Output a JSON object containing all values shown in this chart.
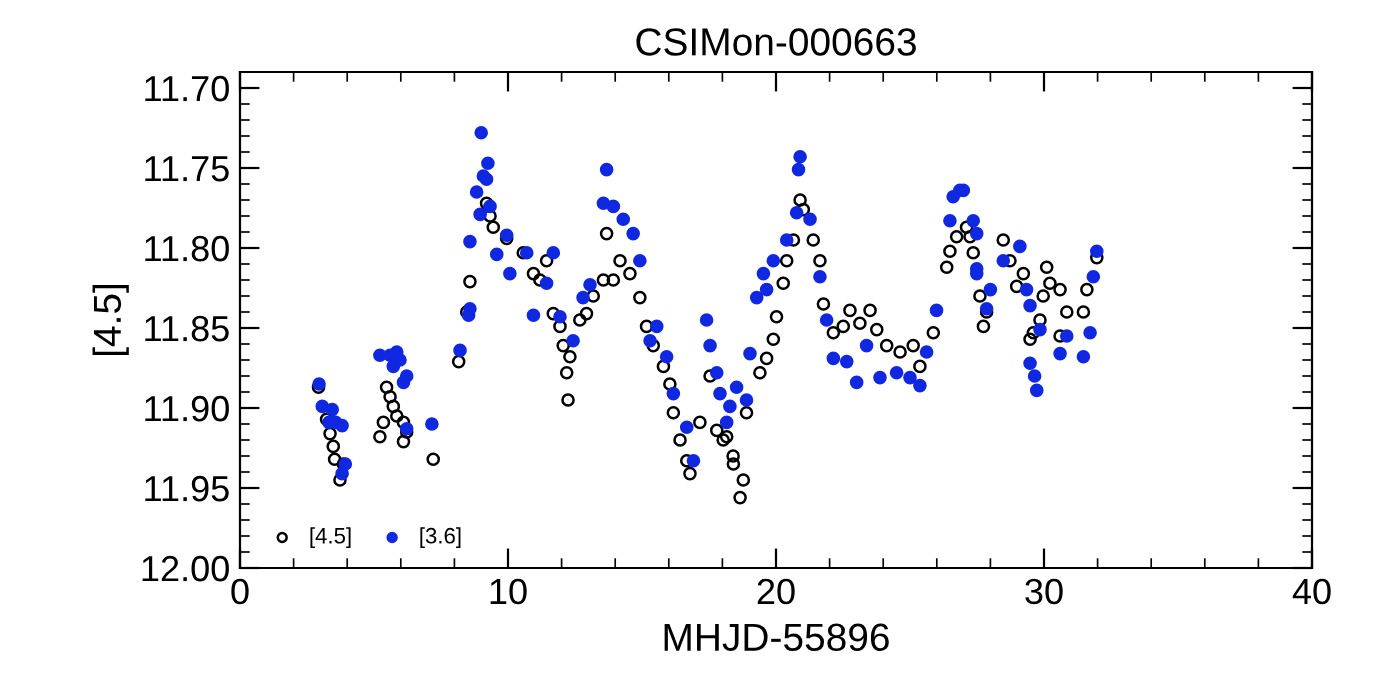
{
  "chart_data": {
    "type": "scatter",
    "title": "CSIMon-000663",
    "xlabel": "MHJD-55896",
    "ylabel": "[4.5]",
    "xlim": [
      0,
      40
    ],
    "xticks": [
      0,
      10,
      20,
      30,
      40
    ],
    "ylim": [
      12.0,
      11.69
    ],
    "yticks": [
      {
        "value": 11.7,
        "label": "11.70"
      },
      {
        "value": 11.75,
        "label": "11.75"
      },
      {
        "value": 11.8,
        "label": "11.80"
      },
      {
        "value": 11.85,
        "label": "11.85"
      },
      {
        "value": 11.9,
        "label": "11.90"
      },
      {
        "value": 11.95,
        "label": "11.95"
      },
      {
        "value": 12.0,
        "label": "12.00"
      }
    ],
    "grid": false,
    "legend": "bottom left",
    "marker": "circle",
    "series": [
      {
        "name": "[4.5]",
        "color": "#000000",
        "x": [
          2.93,
          3.23,
          3.36,
          3.48,
          3.53,
          3.86,
          3.73,
          5.47,
          5.6,
          5.72,
          5.85,
          5.35,
          5.22,
          6.1,
          6.22,
          6.1,
          7.21,
          8.16,
          8.46,
          8.58,
          9.2,
          9.33,
          9.45,
          9.95,
          10.57,
          10.95,
          11.19,
          11.44,
          11.69,
          11.94,
          12.06,
          12.31,
          12.19,
          12.24,
          12.68,
          12.93,
          13.18,
          13.56,
          13.93,
          14.18,
          13.68,
          14.55,
          14.92,
          15.17,
          15.42,
          15.8,
          16.04,
          16.17,
          16.42,
          16.67,
          16.79,
          17.16,
          17.54,
          17.79,
          18.03,
          18.4,
          18.16,
          18.41,
          18.78,
          18.66,
          18.9,
          19.4,
          19.65,
          19.9,
          20.02,
          20.27,
          20.4,
          20.65,
          20.9,
          21.02,
          21.39,
          21.64,
          21.77,
          22.14,
          22.51,
          22.76,
          23.13,
          23.51,
          23.76,
          24.13,
          24.63,
          25.12,
          25.37,
          25.87,
          26.37,
          26.49,
          26.74,
          27.11,
          27.24,
          27.36,
          27.61,
          27.86,
          27.74,
          28.48,
          28.73,
          29.23,
          28.98,
          30.1,
          30.22,
          30.6,
          29.97,
          30.85,
          29.6,
          29.48,
          29.85,
          30.6,
          31.47,
          31.6,
          31.97
        ],
        "values": [
          11.887,
          11.907,
          11.916,
          11.924,
          11.932,
          11.935,
          11.945,
          11.887,
          11.893,
          11.899,
          11.905,
          11.909,
          11.918,
          11.909,
          11.915,
          11.921,
          11.932,
          11.871,
          11.84,
          11.821,
          11.772,
          11.78,
          11.787,
          11.794,
          11.803,
          11.816,
          11.82,
          11.808,
          11.841,
          11.849,
          11.861,
          11.868,
          11.878,
          11.895,
          11.845,
          11.841,
          11.83,
          11.82,
          11.82,
          11.808,
          11.791,
          11.816,
          11.831,
          11.849,
          11.861,
          11.874,
          11.885,
          11.903,
          11.92,
          11.933,
          11.941,
          11.909,
          11.88,
          11.914,
          11.92,
          11.93,
          11.918,
          11.935,
          11.945,
          11.956,
          11.903,
          11.878,
          11.869,
          11.857,
          11.843,
          11.822,
          11.808,
          11.795,
          11.77,
          11.776,
          11.795,
          11.808,
          11.835,
          11.853,
          11.849,
          11.839,
          11.847,
          11.839,
          11.851,
          11.861,
          11.865,
          11.861,
          11.874,
          11.853,
          11.812,
          11.802,
          11.793,
          11.787,
          11.793,
          11.803,
          11.83,
          11.84,
          11.849,
          11.795,
          11.808,
          11.816,
          11.824,
          11.812,
          11.822,
          11.826,
          11.83,
          11.84,
          11.853,
          11.857,
          11.845,
          11.855,
          11.84,
          11.826,
          11.806
        ]
      },
      {
        "name": "[3.6]",
        "color": "#1028e0",
        "x": [
          2.95,
          3.07,
          3.44,
          3.57,
          3.32,
          3.81,
          3.93,
          3.81,
          5.22,
          5.6,
          5.85,
          5.72,
          5.97,
          6.22,
          6.1,
          6.22,
          7.16,
          8.21,
          8.53,
          8.58,
          9.0,
          9.25,
          9.08,
          8.83,
          8.58,
          9.58,
          8.96,
          9.33,
          9.2,
          9.95,
          10.7,
          10.07,
          11.69,
          11.44,
          10.95,
          11.94,
          12.43,
          12.8,
          13.06,
          13.68,
          13.56,
          13.93,
          14.3,
          14.67,
          14.92,
          15.55,
          15.3,
          15.92,
          16.17,
          16.67,
          16.92,
          17.41,
          17.54,
          17.79,
          17.91,
          18.53,
          18.16,
          18.28,
          18.9,
          19.03,
          19.28,
          19.65,
          19.53,
          19.9,
          20.4,
          20.77,
          20.9,
          20.84,
          21.27,
          21.64,
          21.89,
          22.14,
          22.64,
          23.01,
          23.38,
          23.88,
          24.5,
          25.0,
          25.37,
          25.62,
          25.99,
          26.61,
          26.86,
          26.49,
          27.49,
          27.49,
          26.99,
          27.36,
          27.49,
          28.0,
          27.86,
          28.48,
          29.1,
          29.35,
          29.48,
          29.85,
          29.48,
          29.65,
          29.73,
          30.6,
          30.85,
          31.47,
          31.72,
          31.84,
          31.97
        ],
        "values": [
          11.885,
          11.899,
          11.901,
          11.909,
          11.909,
          11.911,
          11.935,
          11.941,
          11.867,
          11.867,
          11.865,
          11.874,
          11.87,
          11.88,
          11.884,
          11.913,
          11.91,
          11.864,
          11.842,
          11.838,
          11.728,
          11.747,
          11.755,
          11.765,
          11.796,
          11.804,
          11.779,
          11.774,
          11.757,
          11.792,
          11.803,
          11.816,
          11.803,
          11.822,
          11.842,
          11.843,
          11.858,
          11.831,
          11.823,
          11.751,
          11.772,
          11.774,
          11.782,
          11.791,
          11.808,
          11.849,
          11.858,
          11.868,
          11.891,
          11.912,
          11.933,
          11.845,
          11.861,
          11.878,
          11.891,
          11.887,
          11.909,
          11.899,
          11.895,
          11.866,
          11.831,
          11.826,
          11.816,
          11.808,
          11.795,
          11.778,
          11.743,
          11.751,
          11.782,
          11.818,
          11.845,
          11.869,
          11.871,
          11.884,
          11.861,
          11.881,
          11.878,
          11.881,
          11.886,
          11.865,
          11.839,
          11.768,
          11.764,
          11.783,
          11.791,
          11.816,
          11.764,
          11.783,
          11.813,
          11.826,
          11.838,
          11.808,
          11.799,
          11.826,
          11.836,
          11.851,
          11.872,
          11.88,
          11.889,
          11.866,
          11.855,
          11.868,
          11.853,
          11.818,
          11.802
        ]
      }
    ]
  }
}
